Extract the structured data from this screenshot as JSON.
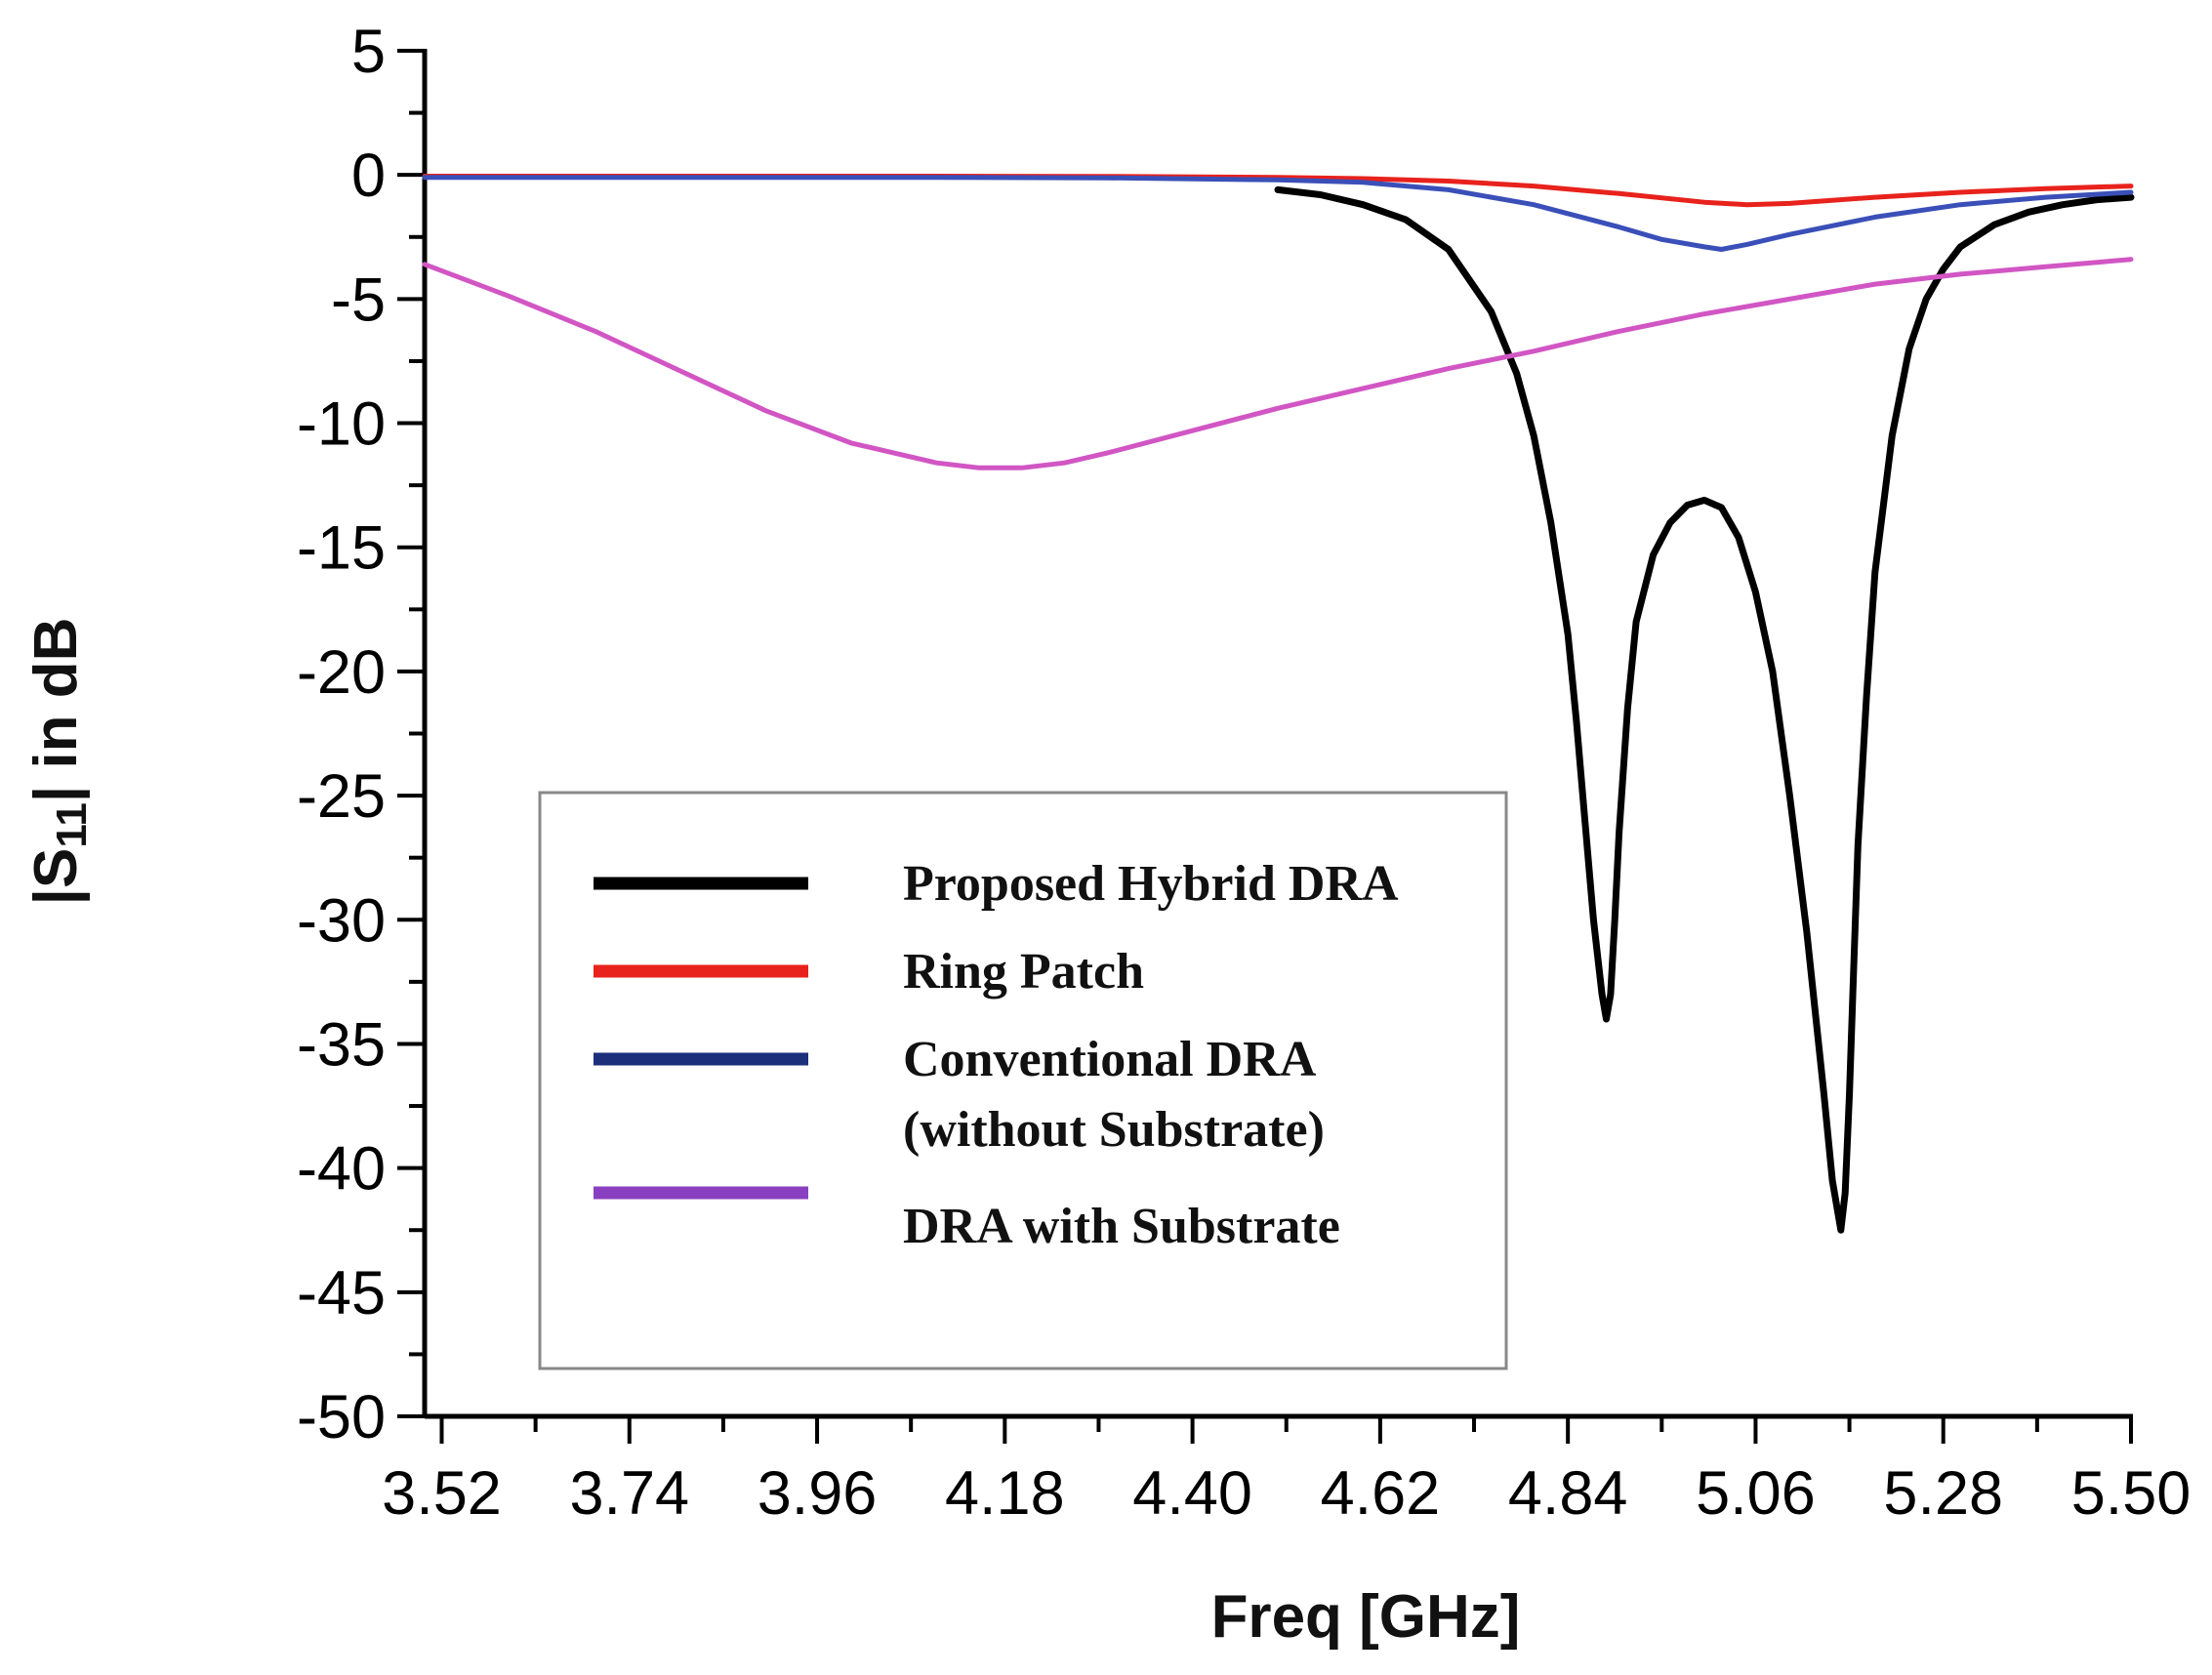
{
  "chart_data": {
    "type": "line",
    "title": "",
    "xlabel": "Freq [GHz]",
    "ylabel_main": "|S",
    "ylabel_sub": "11",
    "ylabel_rest": "| in dB",
    "xlim": [
      3.5,
      5.5
    ],
    "ylim": [
      -50,
      5
    ],
    "x_ticks": [
      3.52,
      3.74,
      3.96,
      4.18,
      4.4,
      4.62,
      4.84,
      5.06,
      5.28,
      5.5
    ],
    "x_tick_labels": [
      "3.52",
      "3.74",
      "3.96",
      "4.18",
      "4.40",
      "4.62",
      "4.84",
      "5.06",
      "5.28",
      "5.50"
    ],
    "x_minor_step": 0.11,
    "y_ticks": [
      5,
      0,
      -5,
      -10,
      -15,
      -20,
      -25,
      -30,
      -35,
      -40,
      -45,
      -50
    ],
    "y_tick_labels": [
      "5",
      "0",
      "-5",
      "-10",
      "-15",
      "-20",
      "-25",
      "-30",
      "-35",
      "-40",
      "-45",
      "-50"
    ],
    "y_minor_step": 2.5,
    "grid": false,
    "legend_position": "lower-left-center",
    "series": [
      {
        "name": "Proposed Hybrid DRA",
        "legend_lines": [
          "Proposed Hybrid DRA"
        ],
        "color": "#000000",
        "legend_color": "#000000",
        "x": [
          4.5,
          4.55,
          4.6,
          4.65,
          4.7,
          4.75,
          4.78,
          4.8,
          4.82,
          4.84,
          4.85,
          4.86,
          4.87,
          4.88,
          4.885,
          4.89,
          4.895,
          4.9,
          4.91,
          4.92,
          4.94,
          4.96,
          4.98,
          5.0,
          5.02,
          5.04,
          5.06,
          5.08,
          5.1,
          5.12,
          5.14,
          5.15,
          5.16,
          5.165,
          5.17,
          5.175,
          5.18,
          5.19,
          5.2,
          5.22,
          5.24,
          5.26,
          5.28,
          5.3,
          5.34,
          5.38,
          5.42,
          5.46,
          5.5
        ],
        "y": [
          -0.6,
          -0.8,
          -1.2,
          -1.8,
          -3.0,
          -5.5,
          -8.0,
          -10.5,
          -14.0,
          -18.5,
          -22.0,
          -26.0,
          -30.0,
          -33.0,
          -34.0,
          -33.0,
          -30.0,
          -26.5,
          -21.5,
          -18.0,
          -15.3,
          -14.0,
          -13.3,
          -13.1,
          -13.4,
          -14.6,
          -16.8,
          -20.0,
          -25.0,
          -30.5,
          -37.0,
          -40.5,
          -42.5,
          -41.0,
          -37.0,
          -32.0,
          -27.0,
          -21.0,
          -16.0,
          -10.5,
          -7.0,
          -5.0,
          -3.8,
          -2.9,
          -2.0,
          -1.5,
          -1.2,
          -1.0,
          -0.9
        ]
      },
      {
        "name": "Ring Patch",
        "legend_lines": [
          "Ring Patch"
        ],
        "color": "#e8221c",
        "legend_color": "#e8221c",
        "x": [
          3.5,
          3.7,
          3.9,
          4.1,
          4.3,
          4.5,
          4.6,
          4.7,
          4.8,
          4.9,
          5.0,
          5.05,
          5.1,
          5.2,
          5.3,
          5.4,
          5.5
        ],
        "y": [
          -0.05,
          -0.05,
          -0.05,
          -0.05,
          -0.06,
          -0.1,
          -0.15,
          -0.25,
          -0.45,
          -0.75,
          -1.1,
          -1.2,
          -1.15,
          -0.9,
          -0.7,
          -0.55,
          -0.45
        ]
      },
      {
        "name": "Conventional DRA (without Substrate)",
        "legend_lines": [
          "Conventional DRA",
          "(without Substrate)"
        ],
        "color": "#3a4fb8",
        "legend_color": "#1c2f7a",
        "x": [
          3.5,
          3.7,
          3.9,
          4.1,
          4.3,
          4.5,
          4.6,
          4.7,
          4.8,
          4.9,
          4.95,
          5.0,
          5.02,
          5.05,
          5.1,
          5.2,
          5.3,
          5.4,
          5.5
        ],
        "y": [
          -0.1,
          -0.1,
          -0.1,
          -0.1,
          -0.12,
          -0.2,
          -0.3,
          -0.6,
          -1.2,
          -2.1,
          -2.6,
          -2.9,
          -3.0,
          -2.8,
          -2.4,
          -1.7,
          -1.2,
          -0.9,
          -0.7
        ]
      },
      {
        "name": "DRA with Substrate",
        "legend_lines": [
          "DRA  with Substrate"
        ],
        "color": "#d156c4",
        "legend_color": "#8a3fc0",
        "x": [
          3.5,
          3.6,
          3.7,
          3.8,
          3.9,
          4.0,
          4.1,
          4.15,
          4.2,
          4.25,
          4.3,
          4.4,
          4.5,
          4.6,
          4.7,
          4.8,
          4.9,
          5.0,
          5.1,
          5.2,
          5.3,
          5.4,
          5.5
        ],
        "y": [
          -3.6,
          -4.9,
          -6.3,
          -7.9,
          -9.5,
          -10.8,
          -11.6,
          -11.8,
          -11.8,
          -11.6,
          -11.2,
          -10.3,
          -9.4,
          -8.6,
          -7.8,
          -7.1,
          -6.3,
          -5.6,
          -5.0,
          -4.4,
          -4.0,
          -3.7,
          -3.4
        ]
      }
    ]
  }
}
